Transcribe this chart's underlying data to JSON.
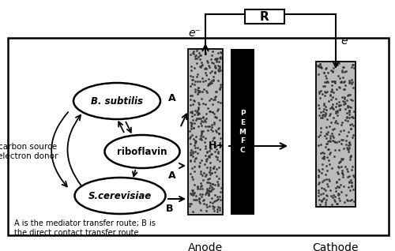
{
  "fig_width": 5.0,
  "fig_height": 3.18,
  "dpi": 100,
  "bg_color": "#ffffff",
  "anode_label": "Anode",
  "cathode_label": "Cathode",
  "R_label": "R",
  "PEMFC_label": "P\nE\nM\nF\nC",
  "Hplus_label": "H+",
  "eminus_left": "e⁻",
  "eminus_right": "e⁻",
  "bsubtilis_label": "B. subtilis",
  "riboflavin_label": "riboflavin",
  "scerevisiae_label": "S.cerevisiae",
  "carbon_label": "carbon source\nelectron donor",
  "legend_label": "A is the mediator transfer route; B is\nthe direct contact transfer route",
  "A_label1": "A",
  "A_label2": "A",
  "B_label": "B"
}
